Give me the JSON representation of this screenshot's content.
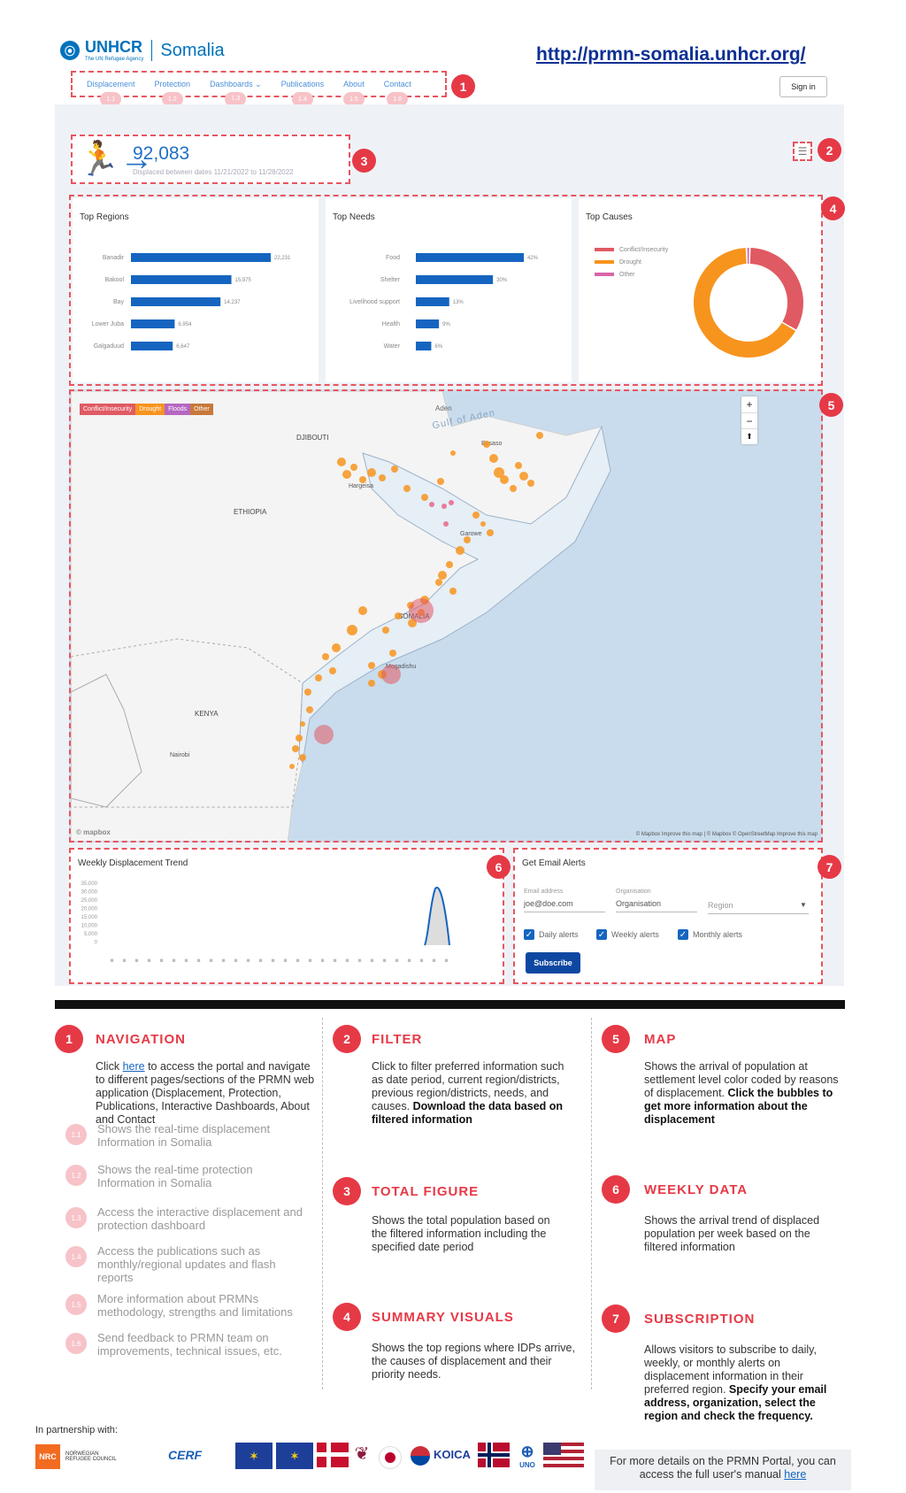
{
  "header": {
    "org": "UNHCR",
    "org_sub": "The UN Refugee Agency",
    "country": "Somalia",
    "portal_url": "http://prmn-somalia.unhcr.org/",
    "sign_in": "Sign in"
  },
  "nav": [
    {
      "label": "Displacement",
      "pill": "1.1"
    },
    {
      "label": "Protection",
      "pill": "1.2"
    },
    {
      "label": "Dashboards ⌄",
      "pill": "1.3"
    },
    {
      "label": "Publications",
      "pill": "1.4"
    },
    {
      "label": "About",
      "pill": "1.5"
    },
    {
      "label": "Contact",
      "pill": "1.6"
    }
  ],
  "badges": [
    "1",
    "2",
    "3",
    "4",
    "5",
    "6",
    "7"
  ],
  "kpi": {
    "value": "92,083",
    "caption": "Displaced between dates 11/21/2022 to 11/28/2022"
  },
  "panels": {
    "top_regions": "Top Regions",
    "top_needs": "Top Needs",
    "top_causes": "Top Causes",
    "weekly_trend": "Weekly Displacement Trend",
    "email_alerts": "Get Email Alerts"
  },
  "chart_data": [
    {
      "type": "bar",
      "title": "Top Regions",
      "categories": [
        "Banadir",
        "Bakool",
        "Bay",
        "Lower Juba",
        "Galgaduud"
      ],
      "values": [
        22231,
        15975,
        14237,
        6954,
        6647
      ],
      "labels": [
        "22,231",
        "15,975",
        "14,237",
        "6,954",
        "6,647"
      ],
      "color": "#1565c0"
    },
    {
      "type": "bar",
      "title": "Top Needs",
      "categories": [
        "Food",
        "Shelter",
        "Livelihood support",
        "Health",
        "Water"
      ],
      "values": [
        42,
        30,
        13,
        9,
        6
      ],
      "labels": [
        "42%",
        "30%",
        "13%",
        "9%",
        "6%"
      ],
      "color": "#1565c0"
    },
    {
      "type": "pie",
      "title": "Top Causes",
      "categories": [
        "Conflict/Insecurity",
        "Drought",
        "Other"
      ],
      "values": [
        33,
        66,
        1
      ],
      "colors": [
        "#e05a63",
        "#f7941d",
        "#d966a8"
      ]
    },
    {
      "type": "area",
      "title": "Weekly Displacement Trend",
      "yticks": [
        "35,000",
        "30,000",
        "25,000",
        "20,000",
        "15,000",
        "10,000",
        "5,000",
        "0"
      ],
      "ylim": [
        0,
        35000
      ],
      "color": "#1565c0"
    }
  ],
  "map": {
    "legend": [
      "Conflict/Insecurity",
      "Drought",
      "Floods",
      "Other"
    ],
    "legend_colors": [
      "#e05a63",
      "#f7941d",
      "#b567c2",
      "#c8783a"
    ],
    "places": [
      "Gulf of Aden",
      "DJIBOUTI",
      "ETHIOPIA",
      "KENYA",
      "SOMALIA",
      "Mogadishu",
      "Nairobi",
      "Hargeisa",
      "Garowe",
      "Bosaso"
    ],
    "attribution": "© Mapbox  Improve this map | © Mapbox © OpenStreetMap Improve this map",
    "logo": "© mapbox",
    "zoom_in": "+",
    "zoom_out": "−",
    "compass": "⬆"
  },
  "alerts": {
    "email_label": "Email address",
    "email_value": "joe@doe.com",
    "org_label": "Organisation",
    "org_value": "Organisation",
    "region_placeholder": "Region",
    "daily": "Daily alerts",
    "weekly": "Weekly alerts",
    "monthly": "Monthly alerts",
    "subscribe": "Subscribe"
  },
  "sections": {
    "navigation": {
      "num": "1",
      "title": "NAVIGATION",
      "pre": "Click ",
      "link": "here",
      "post": " to access the portal and navigate to different pages/sections of the PRMN web application (Displacement, Protection, Publications, Interactive Dashboards, About and Contact"
    },
    "subs": [
      {
        "pill": "1.1",
        "text": "Shows the real-time displacement Information in Somalia"
      },
      {
        "pill": "1.2",
        "text": "Shows the real-time protection Information in Somalia"
      },
      {
        "pill": "1.3",
        "text": "Access the interactive displacement and protection dashboard"
      },
      {
        "pill": "1.4",
        "text": "Access the publications such as monthly/regional updates and flash reports"
      },
      {
        "pill": "1.5",
        "text": "More information about PRMNs methodology, strengths and limitations"
      },
      {
        "pill": "1.6",
        "text": "Send feedback to PRMN team on improvements, technical issues, etc."
      }
    ],
    "filter": {
      "num": "2",
      "title": "FILTER",
      "text": "Click to filter preferred information such as date period, current region/districts, previous region/districts, needs, and causes.",
      "bold": "Download the data based on filtered information"
    },
    "total": {
      "num": "3",
      "title": "TOTAL FIGURE",
      "text": "Shows the total population based on the filtered information including the specified date period"
    },
    "summary": {
      "num": "4",
      "title": "SUMMARY VISUALS",
      "text": "Shows the top regions where IDPs arrive, the causes of displacement and their priority needs."
    },
    "map": {
      "num": "5",
      "title": "MAP",
      "text": "Shows the arrival of population at settlement level color coded by reasons of displacement.",
      "bold": "Click the bubbles to get more information about the displacement"
    },
    "weekly": {
      "num": "6",
      "title": "WEEKLY DATA",
      "text": "Shows the arrival trend of displaced population per week based on the filtered information"
    },
    "subscription": {
      "num": "7",
      "title": "SUBSCRIPTION",
      "text": "Allows visitors to subscribe to daily, weekly, or monthly alerts on displacement information in their preferred region.",
      "bold": "Specify your email address, organization, select the region and check the frequency."
    }
  },
  "footer": {
    "partnership": "In partnership with:",
    "nrc": "NRC",
    "nrc_name": "NORWEGIAN REFUGEE COUNCIL",
    "cerf": "CERF",
    "korea": "KOICA",
    "uno": "UNO",
    "note_pre": "For more details on the PRMN Portal, you can access the full user's manual ",
    "note_link": "here"
  }
}
